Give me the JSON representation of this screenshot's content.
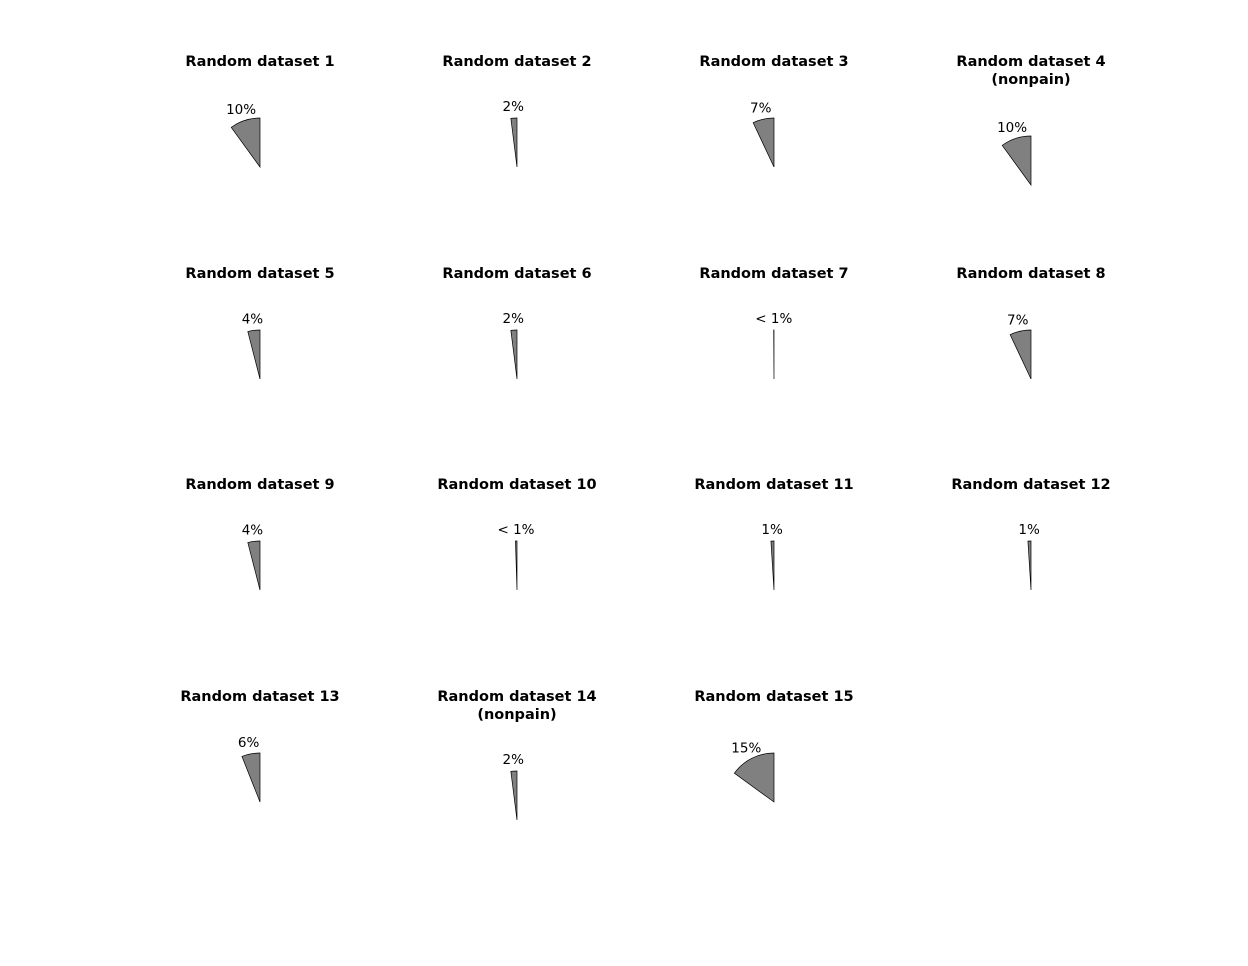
{
  "colors": {
    "slice_fill": "#808080",
    "slice_stroke": "#000000",
    "background": "#ffffff"
  },
  "chart_data": [
    {
      "type": "pie",
      "title": [
        "Random dataset 1"
      ],
      "percent": 10,
      "label": "10%"
    },
    {
      "type": "pie",
      "title": [
        "Random dataset 2"
      ],
      "percent": 2,
      "label": "2%"
    },
    {
      "type": "pie",
      "title": [
        "Random dataset 3"
      ],
      "percent": 7,
      "label": "7%"
    },
    {
      "type": "pie",
      "title": [
        "Random dataset 4",
        "(nonpain)"
      ],
      "percent": 10,
      "label": "10%"
    },
    {
      "type": "pie",
      "title": [
        "Random dataset 5"
      ],
      "percent": 4,
      "label": "4%"
    },
    {
      "type": "pie",
      "title": [
        "Random dataset 6"
      ],
      "percent": 2,
      "label": "2%"
    },
    {
      "type": "pie",
      "title": [
        "Random dataset 7"
      ],
      "percent": 0.1,
      "label": "< 1%"
    },
    {
      "type": "pie",
      "title": [
        "Random dataset 8"
      ],
      "percent": 7,
      "label": "7%"
    },
    {
      "type": "pie",
      "title": [
        "Random dataset 9"
      ],
      "percent": 4,
      "label": "4%"
    },
    {
      "type": "pie",
      "title": [
        "Random dataset 10"
      ],
      "percent": 0.5,
      "label": "< 1%"
    },
    {
      "type": "pie",
      "title": [
        "Random dataset 11"
      ],
      "percent": 1,
      "label": "1%"
    },
    {
      "type": "pie",
      "title": [
        "Random dataset 12"
      ],
      "percent": 1,
      "label": "1%"
    },
    {
      "type": "pie",
      "title": [
        "Random dataset 13"
      ],
      "percent": 6,
      "label": "6%"
    },
    {
      "type": "pie",
      "title": [
        "Random dataset 14",
        "(nonpain)"
      ],
      "percent": 2,
      "label": "2%"
    },
    {
      "type": "pie",
      "title": [
        "Random dataset 15"
      ],
      "percent": 15,
      "label": "15%"
    }
  ]
}
